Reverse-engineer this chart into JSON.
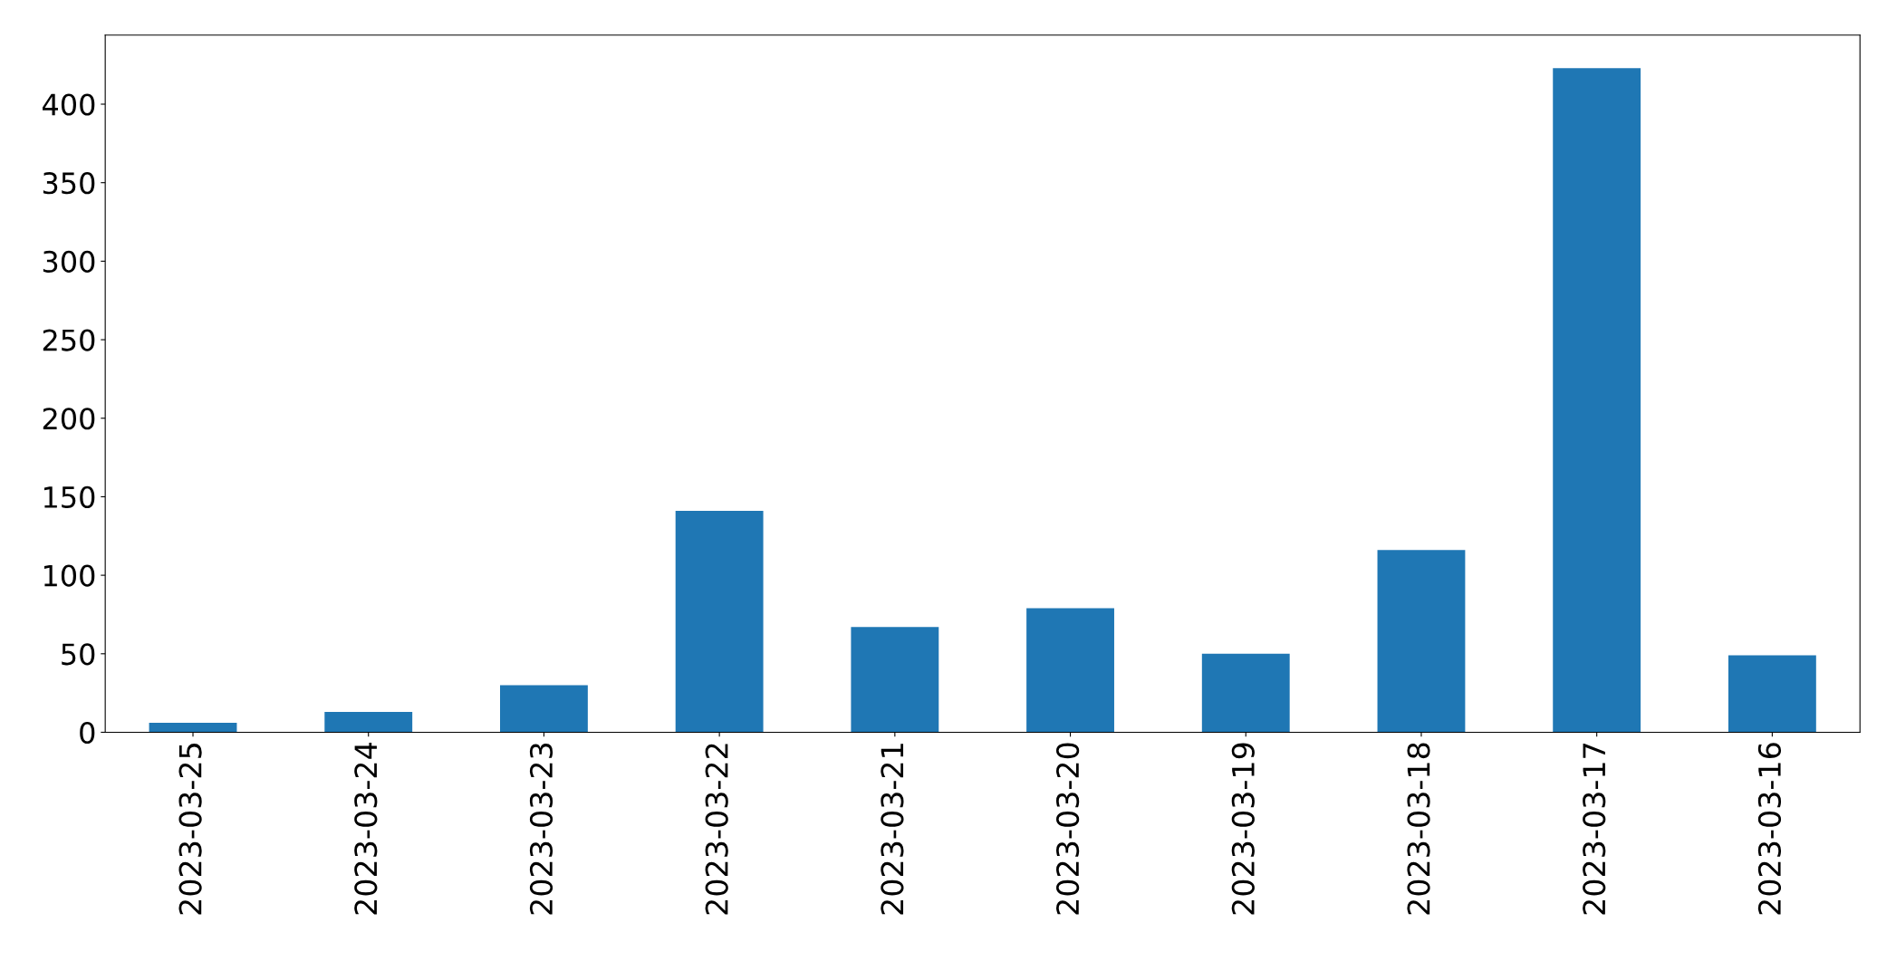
{
  "chart_data": {
    "type": "bar",
    "categories": [
      "2023-03-25",
      "2023-03-24",
      "2023-03-23",
      "2023-03-22",
      "2023-03-21",
      "2023-03-20",
      "2023-03-19",
      "2023-03-18",
      "2023-03-17",
      "2023-03-16"
    ],
    "values": [
      6,
      13,
      30,
      141,
      67,
      79,
      50,
      116,
      423,
      49
    ],
    "color": "#1f77b4",
    "ylim": [
      0,
      444
    ],
    "yticks": [
      0,
      50,
      100,
      150,
      200,
      250,
      300,
      350,
      400
    ],
    "grid": false
  }
}
